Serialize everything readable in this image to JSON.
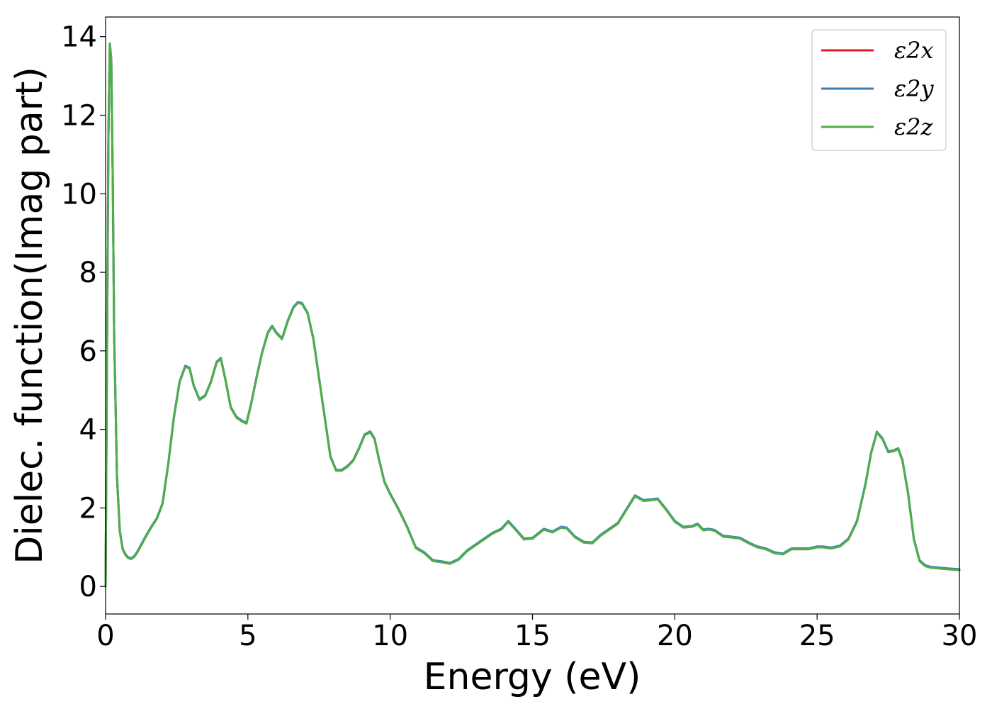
{
  "chart_data": {
    "type": "line",
    "title": "",
    "xlabel": "Energy (eV)",
    "ylabel": "Dielec. function(Imag part)",
    "xlim": [
      0,
      30
    ],
    "ylim": [
      -0.7,
      14.5
    ],
    "xticks": [
      0,
      5,
      10,
      15,
      20,
      25,
      30
    ],
    "yticks": [
      0,
      2,
      4,
      6,
      8,
      10,
      12,
      14
    ],
    "grid": false,
    "legend_position": "top-right",
    "x": [
      0,
      0.05,
      0.1,
      0.15,
      0.2,
      0.25,
      0.3,
      0.4,
      0.5,
      0.6,
      0.7,
      0.8,
      0.9,
      1.0,
      1.1,
      1.2,
      1.4,
      1.6,
      1.8,
      2.0,
      2.2,
      2.4,
      2.6,
      2.8,
      2.95,
      3.1,
      3.3,
      3.5,
      3.7,
      3.9,
      4.05,
      4.2,
      4.4,
      4.6,
      4.8,
      4.95,
      5.1,
      5.3,
      5.5,
      5.7,
      5.85,
      6.0,
      6.2,
      6.4,
      6.6,
      6.75,
      6.9,
      7.1,
      7.3,
      7.5,
      7.7,
      7.9,
      8.1,
      8.3,
      8.5,
      8.7,
      8.9,
      9.1,
      9.3,
      9.45,
      9.6,
      9.8,
      10.0,
      10.3,
      10.6,
      10.9,
      11.2,
      11.5,
      11.8,
      12.1,
      12.4,
      12.7,
      13.0,
      13.3,
      13.6,
      13.9,
      14.15,
      14.4,
      14.7,
      15.0,
      15.4,
      15.7,
      16.0,
      16.2,
      16.5,
      16.8,
      17.1,
      17.4,
      17.7,
      18.0,
      18.3,
      18.6,
      18.9,
      19.2,
      19.4,
      19.7,
      20.0,
      20.3,
      20.6,
      20.8,
      21.0,
      21.2,
      21.4,
      21.7,
      22.0,
      22.3,
      22.6,
      22.9,
      23.2,
      23.5,
      23.8,
      24.1,
      24.4,
      24.7,
      25.0,
      25.2,
      25.5,
      25.8,
      26.1,
      26.4,
      26.7,
      26.9,
      27.1,
      27.3,
      27.5,
      27.7,
      27.85,
      28.0,
      28.2,
      28.4,
      28.6,
      28.8,
      29.0,
      29.3,
      29.6,
      30.0
    ],
    "series": [
      {
        "name": "ε2x",
        "color": "#e41a1c",
        "offset": 0
      },
      {
        "name": "ε2y",
        "color": "#377eb8",
        "offset": 0.02
      },
      {
        "name": "ε2z",
        "color": "#4daf4a",
        "offset": 0
      }
    ],
    "y": [
      0,
      6.0,
      11.5,
      13.8,
      13.4,
      10.5,
      6.5,
      2.8,
      1.4,
      0.95,
      0.8,
      0.72,
      0.7,
      0.75,
      0.85,
      0.98,
      1.25,
      1.5,
      1.72,
      2.1,
      3.1,
      4.3,
      5.2,
      5.6,
      5.55,
      5.1,
      4.75,
      4.85,
      5.2,
      5.7,
      5.8,
      5.3,
      4.55,
      4.3,
      4.2,
      4.15,
      4.6,
      5.3,
      5.95,
      6.45,
      6.62,
      6.45,
      6.3,
      6.75,
      7.1,
      7.22,
      7.2,
      6.95,
      6.3,
      5.3,
      4.3,
      3.3,
      2.95,
      2.95,
      3.05,
      3.2,
      3.5,
      3.85,
      3.93,
      3.75,
      3.25,
      2.65,
      2.35,
      1.95,
      1.5,
      0.98,
      0.85,
      0.65,
      0.62,
      0.58,
      0.68,
      0.9,
      1.05,
      1.2,
      1.35,
      1.45,
      1.65,
      1.45,
      1.2,
      1.22,
      1.45,
      1.38,
      1.5,
      1.48,
      1.25,
      1.12,
      1.1,
      1.3,
      1.45,
      1.6,
      1.95,
      2.3,
      2.18,
      2.2,
      2.22,
      1.95,
      1.65,
      1.5,
      1.52,
      1.58,
      1.43,
      1.45,
      1.42,
      1.27,
      1.25,
      1.22,
      1.1,
      1.0,
      0.95,
      0.85,
      0.82,
      0.95,
      0.95,
      0.95,
      1.0,
      1.0,
      0.97,
      1.02,
      1.2,
      1.65,
      2.6,
      3.4,
      3.92,
      3.75,
      3.42,
      3.45,
      3.5,
      3.2,
      2.35,
      1.2,
      0.65,
      0.52,
      0.48,
      0.46,
      0.44,
      0.42
    ]
  }
}
